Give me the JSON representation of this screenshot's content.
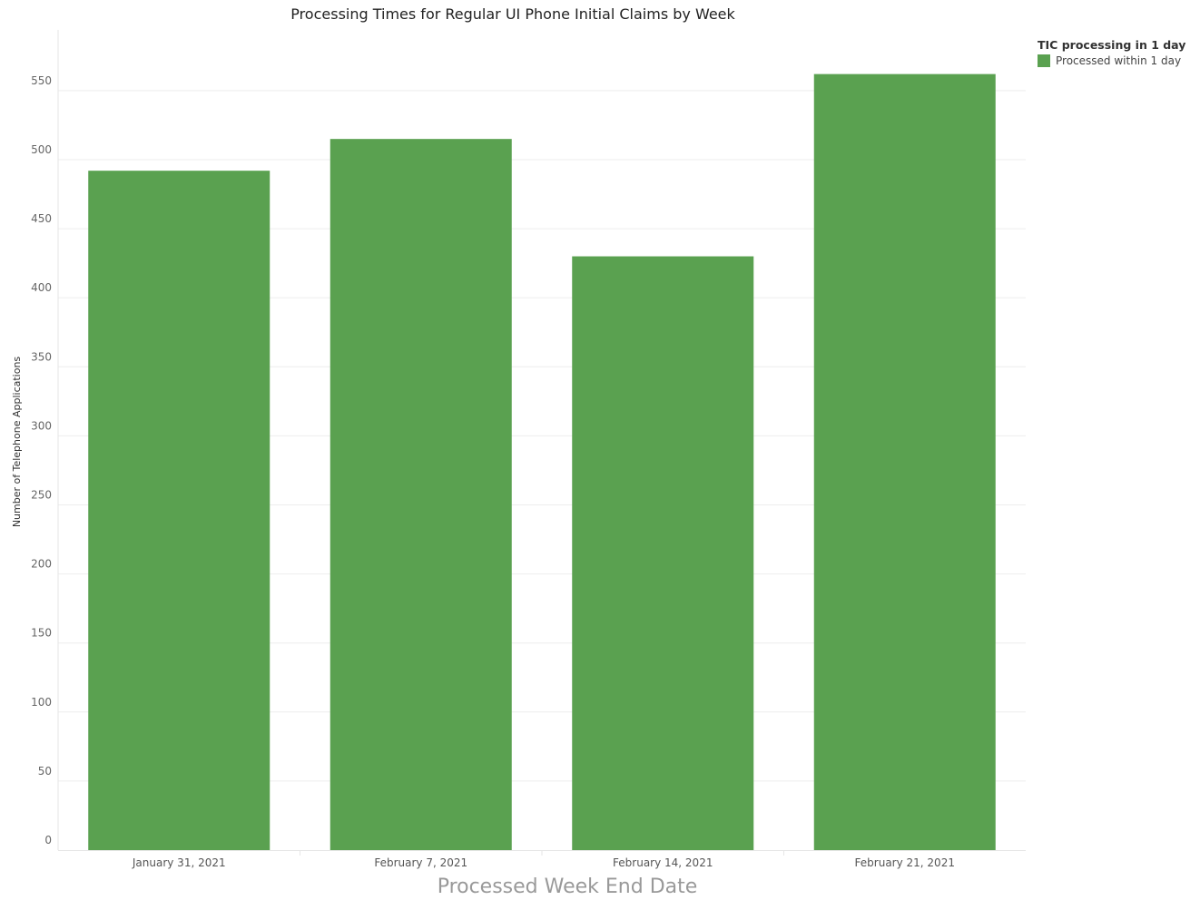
{
  "chart_data": {
    "type": "bar",
    "title": "Processing Times for Regular UI Phone Initial Claims by Week",
    "xlabel": "Processed Week End Date",
    "ylabel": "Number of Telephone Applications",
    "categories": [
      "January 31, 2021",
      "February 7, 2021",
      "February 14, 2021",
      "February 21, 2021"
    ],
    "series": [
      {
        "name": "Processed within 1 day",
        "values": [
          492,
          515,
          430,
          562
        ],
        "color": "#5aa150"
      }
    ],
    "ylim": [
      0,
      594
    ],
    "yticks": [
      0,
      50,
      100,
      150,
      200,
      250,
      300,
      350,
      400,
      450,
      500,
      550
    ],
    "grid": true,
    "legend": {
      "title": "TIC processing in 1 day",
      "position": "top-right"
    }
  }
}
